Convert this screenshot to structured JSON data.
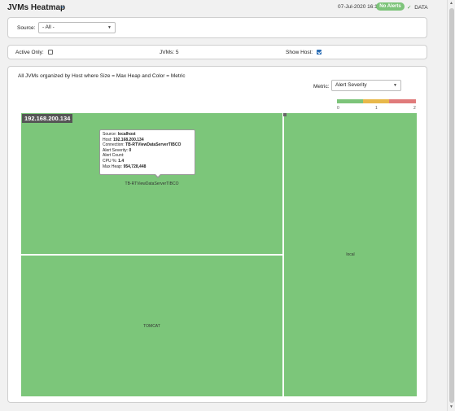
{
  "header": {
    "title": "JVMs Heatmap",
    "datetime": "07-Jul-2020 16:16",
    "alert_badge": "No Alerts",
    "data_status": "DATA"
  },
  "filters": {
    "source_label": "Source:",
    "source_value": "- All -",
    "active_only_label": "Active Only:",
    "active_only_checked": false,
    "jvm_count_label": "JVMs: 5",
    "show_host_label": "Show Host:",
    "show_host_checked": true
  },
  "main": {
    "description": "All JVMs organized by Host where Size = Max Heap and Color = Metric",
    "metric_label": "Metric:",
    "metric_value": "Alert Severity",
    "legend": {
      "ticks": [
        "0",
        "1",
        "2"
      ],
      "colors": [
        "#7dc47a",
        "#e8b84a",
        "#e07b7b"
      ]
    },
    "heatmap": {
      "host_label": "192.168.200.134",
      "cell_color": "#7cc67a",
      "cells": [
        {
          "label": "TB-RTViewDataServerTIBCO"
        },
        {
          "label": "TOMCAT"
        },
        {
          "label": "local"
        }
      ]
    },
    "tooltip": {
      "source_label": "Source:",
      "source_value": "localhost",
      "host_label": "Host:",
      "host_value": "192.168.200.134",
      "connection_label": "Connection:",
      "connection_value": "TB-RTViewDataServerTIBCO",
      "alert_severity_label": "Alert Severity:",
      "alert_severity_value": "0",
      "alert_count_label": "Alert Count:",
      "alert_count_value": "",
      "cpu_label": "CPU %:",
      "cpu_value": "1.4",
      "max_heap_label": "Max Heap:",
      "max_heap_value": "954,728,448"
    }
  },
  "icons": {
    "title_chevron": "chevron-down-icon",
    "data_check": "check-icon",
    "select_arrow": "triangle-down-icon"
  }
}
